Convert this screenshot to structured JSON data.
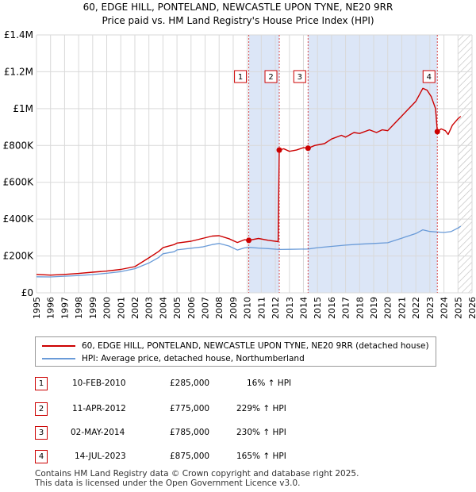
{
  "title": {
    "line1": "60, EDGE HILL, PONTELAND, NEWCASTLE UPON TYNE, NE20 9RR",
    "line2": "Price paid vs. HM Land Registry's House Price Index (HPI)"
  },
  "colors": {
    "property": "#cc0000",
    "hpi": "#6a9bd8",
    "shade": "#dce6f7",
    "grid": "#d9d9d9",
    "hatch": "#b8b8b8"
  },
  "chart_data": {
    "type": "line",
    "title": "Price paid vs. HM Land Registry's House Price Index (HPI)",
    "xlim": [
      1995,
      2026
    ],
    "ylim": [
      0,
      1400000
    ],
    "x_ticks": [
      "1995",
      "1996",
      "1997",
      "1998",
      "1999",
      "2000",
      "2001",
      "2002",
      "2003",
      "2004",
      "2005",
      "2006",
      "2007",
      "2008",
      "2009",
      "2010",
      "2011",
      "2012",
      "2013",
      "2014",
      "2015",
      "2016",
      "2017",
      "2018",
      "2019",
      "2020",
      "2021",
      "2022",
      "2023",
      "2024",
      "2025",
      "2026"
    ],
    "y_ticks": [
      {
        "value": 0,
        "label": "£0"
      },
      {
        "value": 200000,
        "label": "£200K"
      },
      {
        "value": 400000,
        "label": "£400K"
      },
      {
        "value": 600000,
        "label": "£600K"
      },
      {
        "value": 800000,
        "label": "£800K"
      },
      {
        "value": 1000000,
        "label": "£1M"
      },
      {
        "value": 1200000,
        "label": "£1.2M"
      },
      {
        "value": 1400000,
        "label": "£1.4M"
      }
    ],
    "shaded_periods": [
      [
        2010.11,
        2012.28
      ],
      [
        2014.33,
        2023.53
      ]
    ],
    "future_hatch_from": 2025.0,
    "series": [
      {
        "name": "60, EDGE HILL, PONTELAND, NEWCASTLE UPON TYNE, NE20 9RR (detached house)",
        "x": [
          1995,
          1996,
          1997,
          1998,
          1999,
          2000,
          2001,
          2002,
          2003,
          2003.7,
          2004,
          2004.8,
          2005,
          2006,
          2006.8,
          2007.5,
          2008,
          2008.7,
          2009.3,
          2009.8,
          2010.11,
          2010.8,
          2011.5,
          2012.2,
          2012.28,
          2012.6,
          2013,
          2013.5,
          2014,
          2014.33,
          2014.8,
          2015.5,
          2016,
          2016.7,
          2017,
          2017.6,
          2018,
          2018.7,
          2019.2,
          2019.6,
          2020,
          2020.5,
          2021,
          2021.5,
          2022,
          2022.5,
          2022.8,
          2023.1,
          2023.4,
          2023.53,
          2023.8,
          2024.1,
          2024.3,
          2024.6,
          2025,
          2025.2
        ],
        "values": [
          100000,
          96000,
          100000,
          105000,
          112000,
          118000,
          127000,
          142000,
          190000,
          225000,
          245000,
          262000,
          270000,
          280000,
          295000,
          308000,
          310000,
          294000,
          273000,
          288000,
          285000,
          295000,
          285000,
          278000,
          775000,
          782000,
          768000,
          775000,
          788000,
          785000,
          800000,
          810000,
          835000,
          855000,
          845000,
          870000,
          865000,
          885000,
          870000,
          885000,
          880000,
          920000,
          960000,
          1000000,
          1040000,
          1110000,
          1100000,
          1065000,
          1000000,
          875000,
          890000,
          880000,
          860000,
          910000,
          945000,
          958000
        ]
      },
      {
        "name": "HPI: Average price, detached house, Northumberland",
        "x": [
          1995,
          1996,
          1997,
          1998,
          1999,
          2000,
          2001,
          2002,
          2003,
          2003.7,
          2004,
          2004.8,
          2005,
          2006,
          2006.8,
          2007.5,
          2008,
          2008.7,
          2009.3,
          2009.8,
          2010.11,
          2010.8,
          2011.5,
          2012.28,
          2013,
          2014.33,
          2015,
          2016,
          2017,
          2018,
          2019,
          2020,
          2021,
          2022,
          2022.5,
          2023,
          2023.53,
          2024,
          2024.5,
          2025,
          2025.2
        ],
        "values": [
          87000,
          86000,
          90000,
          94000,
          99000,
          106000,
          115000,
          131000,
          162000,
          192000,
          212000,
          223000,
          233000,
          242000,
          249000,
          262000,
          268000,
          254000,
          232000,
          244000,
          247000,
          243000,
          240000,
          235000,
          236000,
          238000,
          245000,
          252000,
          259000,
          264000,
          268000,
          272000,
          297000,
          322000,
          342000,
          333000,
          330000,
          328000,
          332000,
          352000,
          362000
        ]
      }
    ],
    "sales": [
      {
        "n": "1",
        "x": 2010.11,
        "value": 285000
      },
      {
        "n": "2",
        "x": 2012.28,
        "value": 775000
      },
      {
        "n": "3",
        "x": 2014.33,
        "value": 785000
      },
      {
        "n": "4",
        "x": 2023.53,
        "value": 875000
      }
    ]
  },
  "legend": {
    "property": "60, EDGE HILL, PONTELAND, NEWCASTLE UPON TYNE, NE20 9RR (detached house)",
    "hpi": "HPI: Average price, detached house, Northumberland"
  },
  "transactions": [
    {
      "n": "1",
      "date": "10-FEB-2010",
      "price": "£285,000",
      "change": "16% ↑ HPI"
    },
    {
      "n": "2",
      "date": "11-APR-2012",
      "price": "£775,000",
      "change": "229% ↑ HPI"
    },
    {
      "n": "3",
      "date": "02-MAY-2014",
      "price": "£785,000",
      "change": "230% ↑ HPI"
    },
    {
      "n": "4",
      "date": "14-JUL-2023",
      "price": "£875,000",
      "change": "165% ↑ HPI"
    }
  ],
  "footer": {
    "line1": "Contains HM Land Registry data © Crown copyright and database right 2025.",
    "line2": "This data is licensed under the Open Government Licence v3.0."
  }
}
